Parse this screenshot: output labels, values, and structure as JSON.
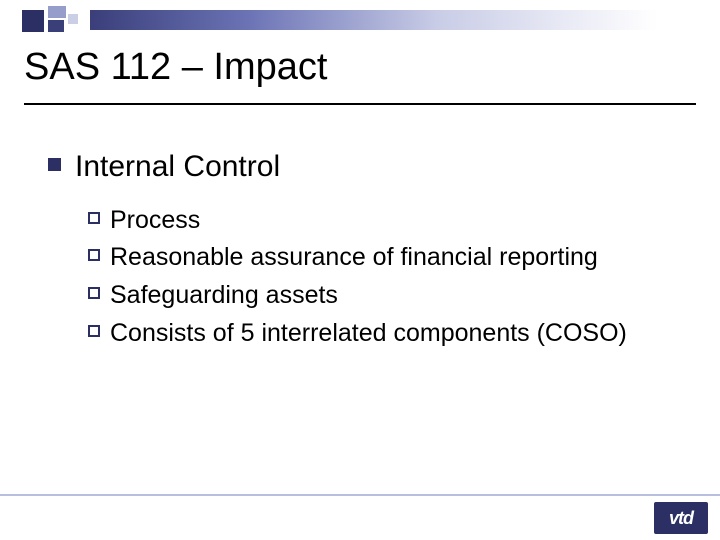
{
  "colors": {
    "accent_dark": "#2b2f63",
    "accent_mid": "#3a3f7a",
    "accent_light": "#6b73b5",
    "accent_pale": "#c8cce6",
    "footer_line": "#b9bfdf",
    "text": "#000000",
    "background": "#ffffff"
  },
  "typography": {
    "title_fontsize": 38,
    "lvl1_fontsize": 30,
    "lvl2_fontsize": 25,
    "font_family": "Arial"
  },
  "title": "SAS 112 – Impact",
  "content": {
    "lvl1": {
      "text": "Internal Control",
      "bullet_style": "filled-square",
      "children": [
        {
          "text": "Process"
        },
        {
          "text": "Reasonable assurance of financial reporting"
        },
        {
          "text": "Safeguarding assets"
        },
        {
          "text": "Consists of 5 interrelated components (COSO)"
        }
      ],
      "child_bullet_style": "hollow-square"
    }
  },
  "logo": {
    "text": "vtd"
  }
}
